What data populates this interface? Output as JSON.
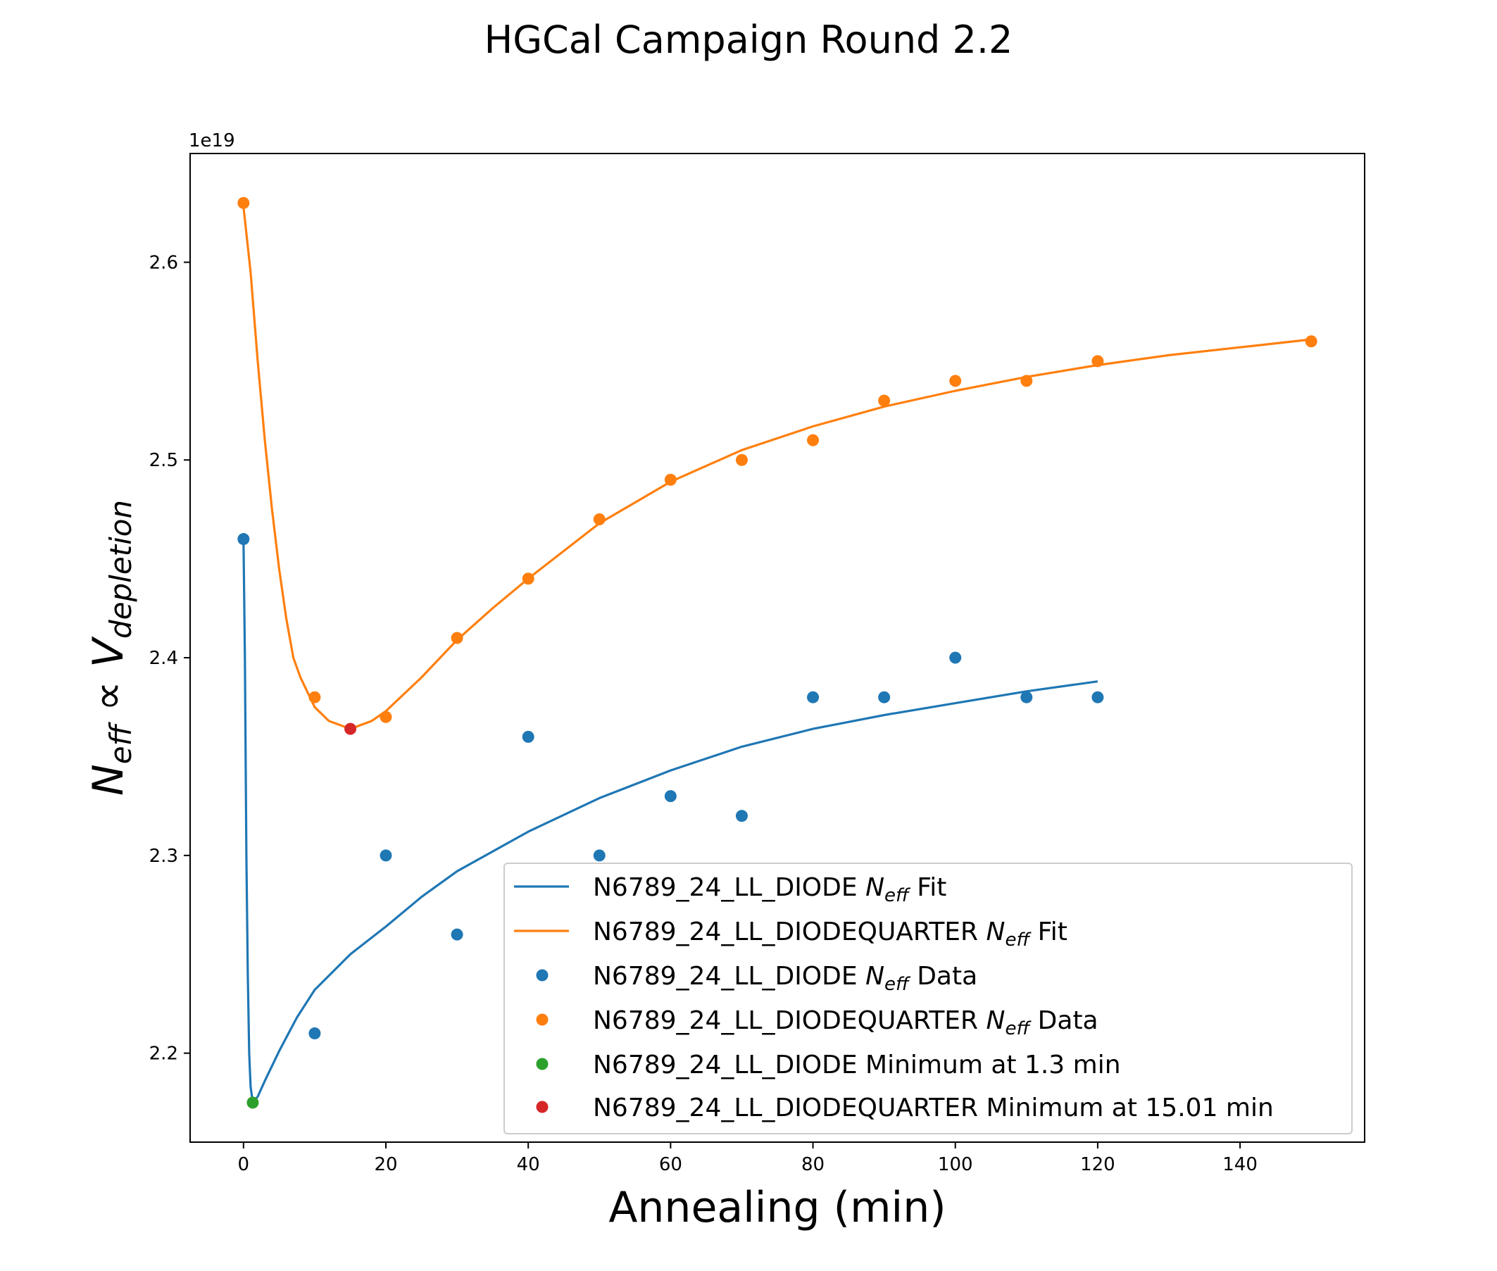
{
  "chart_data": {
    "type": "scatter",
    "title": "HGCal Campaign Round 2.2",
    "xlabel": "Annealing (min)",
    "ylabel": {
      "n": "N",
      "n_sub": "eff",
      "prop": "∝",
      "v": "V",
      "v_sub": "depletion"
    },
    "offset_label": "1e19",
    "xlim": [
      -7.5,
      157.5
    ],
    "ylim": [
      2.155,
      2.655
    ],
    "xticks": [
      0,
      20,
      40,
      60,
      80,
      100,
      120,
      140
    ],
    "yticks": [
      2.2,
      2.3,
      2.4,
      2.5,
      2.6
    ],
    "grid": false,
    "legend_position": "lower-right",
    "series": [
      {
        "name": "N6789_24_LL_DIODE N_eff Fit",
        "kind": "line",
        "color": "#1f77b4",
        "x": [
          0,
          0.2,
          0.4,
          0.6,
          0.8,
          1.0,
          1.3,
          2,
          3,
          5,
          7.5,
          10,
          15,
          20,
          25,
          30,
          40,
          50,
          60,
          70,
          80,
          90,
          100,
          110,
          120
        ],
        "y": [
          2.46,
          2.4,
          2.3,
          2.24,
          2.2,
          2.183,
          2.175,
          2.178,
          2.186,
          2.201,
          2.218,
          2.232,
          2.25,
          2.264,
          2.279,
          2.292,
          2.312,
          2.329,
          2.343,
          2.355,
          2.364,
          2.371,
          2.377,
          2.383,
          2.388
        ]
      },
      {
        "name": "N6789_24_LL_DIODEQUARTER N_eff Fit",
        "kind": "line",
        "color": "#ff7f0e",
        "x": [
          0,
          1,
          2,
          3,
          4,
          5,
          6,
          7,
          8,
          10,
          12,
          15.01,
          18,
          20,
          25,
          30,
          35,
          40,
          50,
          60,
          70,
          80,
          90,
          100,
          110,
          120,
          130,
          140,
          150
        ],
        "y": [
          2.628,
          2.595,
          2.55,
          2.51,
          2.475,
          2.445,
          2.42,
          2.4,
          2.39,
          2.375,
          2.368,
          2.364,
          2.368,
          2.373,
          2.39,
          2.409,
          2.425,
          2.44,
          2.468,
          2.489,
          2.505,
          2.517,
          2.527,
          2.535,
          2.542,
          2.548,
          2.553,
          2.557,
          2.561
        ]
      },
      {
        "name": "N6789_24_LL_DIODE N_eff Data",
        "kind": "scatter",
        "color": "#1f77b4",
        "x": [
          0,
          10,
          20,
          30,
          40,
          50,
          60,
          70,
          80,
          90,
          100,
          110,
          120
        ],
        "y": [
          2.46,
          2.21,
          2.3,
          2.26,
          2.36,
          2.3,
          2.33,
          2.32,
          2.38,
          2.38,
          2.4,
          2.38,
          2.38
        ]
      },
      {
        "name": "N6789_24_LL_DIODEQUARTER N_eff Data",
        "kind": "scatter",
        "color": "#ff7f0e",
        "x": [
          0,
          10,
          20,
          30,
          40,
          50,
          60,
          70,
          80,
          90,
          100,
          110,
          120,
          150
        ],
        "y": [
          2.63,
          2.38,
          2.37,
          2.41,
          2.44,
          2.47,
          2.49,
          2.5,
          2.51,
          2.53,
          2.54,
          2.54,
          2.55,
          2.56
        ]
      },
      {
        "name": "N6789_24_LL_DIODE Minimum at 1.3 min",
        "kind": "scatter",
        "color": "#2ca02c",
        "x": [
          1.3
        ],
        "y": [
          2.175
        ]
      },
      {
        "name": "N6789_24_LL_DIODEQUARTER Minimum at 15.01 min",
        "kind": "scatter",
        "color": "#d62728",
        "x": [
          15.01
        ],
        "y": [
          2.364
        ]
      }
    ],
    "legend": [
      {
        "kind": "line",
        "color": "#1f77b4",
        "pre": "N6789_24_LL_DIODE ",
        "n": "N",
        "sub": "eff",
        "post": " Fit"
      },
      {
        "kind": "line",
        "color": "#ff7f0e",
        "pre": "N6789_24_LL_DIODEQUARTER ",
        "n": "N",
        "sub": "eff",
        "post": " Fit"
      },
      {
        "kind": "marker",
        "color": "#1f77b4",
        "pre": "N6789_24_LL_DIODE ",
        "n": "N",
        "sub": "eff",
        "post": " Data"
      },
      {
        "kind": "marker",
        "color": "#ff7f0e",
        "pre": "N6789_24_LL_DIODEQUARTER ",
        "n": "N",
        "sub": "eff",
        "post": " Data"
      },
      {
        "kind": "marker",
        "color": "#2ca02c",
        "pre": "N6789_24_LL_DIODE Minimum at 1.3 min",
        "n": "",
        "sub": "",
        "post": ""
      },
      {
        "kind": "marker",
        "color": "#d62728",
        "pre": "N6789_24_LL_DIODEQUARTER Minimum at 15.01 min",
        "n": "",
        "sub": "",
        "post": ""
      }
    ]
  }
}
